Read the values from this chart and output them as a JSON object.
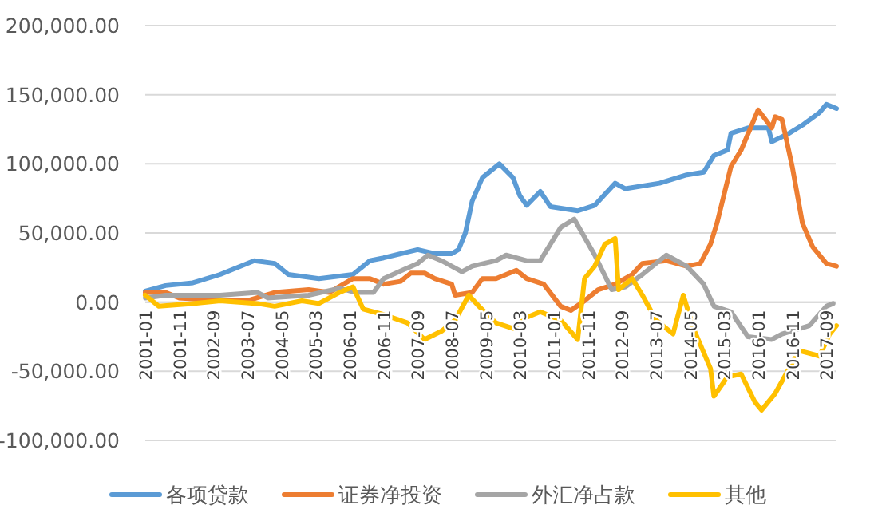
{
  "chart_data": {
    "type": "line",
    "legend": "bottom",
    "grid": "y",
    "line_style": "solid",
    "marker": "none",
    "xlim": [
      "2001-01",
      "2017-12"
    ],
    "xticks": [
      "2001-01",
      "2001-11",
      "2002-09",
      "2003-07",
      "2004-05",
      "2005-03",
      "2006-01",
      "2006-11",
      "2007-09",
      "2008-07",
      "2009-05",
      "2010-03",
      "2011-01",
      "2011-11",
      "2012-09",
      "2013-07",
      "2014-05",
      "2015-03",
      "2016-01",
      "2016-11",
      "2017-09"
    ],
    "ylim": [
      -100000,
      200000
    ],
    "yticks": [
      {
        "value": -100000,
        "label": "-100,000.00"
      },
      {
        "value": -50000,
        "label": "-50,000.00"
      },
      {
        "value": 0,
        "label": "0.00"
      },
      {
        "value": 50000,
        "label": "50,000.00"
      },
      {
        "value": 100000,
        "label": "100,000.00"
      },
      {
        "value": 150000,
        "label": "150,000.00"
      },
      {
        "value": 200000,
        "label": "200,000.00"
      }
    ],
    "series": [
      {
        "name": "各项贷款",
        "color": "#5b9bd5",
        "x": [
          "2001-01",
          "2001-07",
          "2002-03",
          "2002-11",
          "2003-09",
          "2004-03",
          "2004-07",
          "2005-04",
          "2006-02",
          "2006-07",
          "2006-11",
          "2007-04",
          "2007-09",
          "2008-02",
          "2008-07",
          "2008-09",
          "2008-11",
          "2009-01",
          "2009-04",
          "2009-09",
          "2010-01",
          "2010-03",
          "2010-05",
          "2010-09",
          "2010-12",
          "2011-08",
          "2012-01",
          "2012-07",
          "2012-10",
          "2013-08",
          "2014-04",
          "2014-09",
          "2014-12",
          "2015-04",
          "2015-05",
          "2015-10",
          "2016-04",
          "2016-05",
          "2016-10",
          "2017-02",
          "2017-07",
          "2017-09",
          "2017-12"
        ],
        "values": [
          8000,
          12000,
          14000,
          20000,
          30000,
          28000,
          20000,
          17000,
          20000,
          30000,
          32000,
          35000,
          38000,
          35000,
          35000,
          38000,
          50000,
          73000,
          90000,
          100000,
          90000,
          77000,
          70000,
          80000,
          69000,
          66000,
          70000,
          86000,
          82000,
          86000,
          92000,
          94000,
          106000,
          110000,
          122000,
          126000,
          126000,
          116000,
          122000,
          128000,
          137000,
          143000,
          140000
        ]
      },
      {
        "name": "证券净投资",
        "color": "#ed7d31",
        "x": [
          "2001-01",
          "2001-07",
          "2001-11",
          "2002-11",
          "2003-07",
          "2004-03",
          "2005-01",
          "2005-07",
          "2006-02",
          "2006-07",
          "2006-11",
          "2007-04",
          "2007-07",
          "2007-11",
          "2008-02",
          "2008-07",
          "2008-08",
          "2009-01",
          "2009-04",
          "2009-08",
          "2010-02",
          "2010-05",
          "2010-10",
          "2011-03",
          "2011-06",
          "2011-10",
          "2012-02",
          "2012-07",
          "2012-12",
          "2013-03",
          "2013-10",
          "2014-04",
          "2014-08",
          "2014-11",
          "2015-01",
          "2015-05",
          "2015-08",
          "2016-01",
          "2016-05",
          "2016-06",
          "2016-08",
          "2016-11",
          "2017-02",
          "2017-05",
          "2017-09",
          "2017-12"
        ],
        "values": [
          7000,
          7000,
          3000,
          1000,
          1000,
          7000,
          9000,
          7000,
          17000,
          17000,
          13000,
          15000,
          21000,
          21000,
          17000,
          13000,
          5000,
          7000,
          17000,
          17000,
          23000,
          17000,
          13000,
          -3000,
          -6000,
          1000,
          9000,
          13000,
          20000,
          28000,
          30000,
          26000,
          28000,
          42000,
          58000,
          98000,
          110000,
          139000,
          126000,
          134000,
          132000,
          98000,
          57000,
          40000,
          28000,
          26000
        ]
      },
      {
        "name": "外汇净占款",
        "color": "#a5a5a5",
        "x": [
          "2001-01",
          "2001-07",
          "2002-11",
          "2003-10",
          "2004-01",
          "2005-01",
          "2005-10",
          "2006-03",
          "2006-08",
          "2006-11",
          "2007-09",
          "2007-12",
          "2008-04",
          "2008-10",
          "2009-01",
          "2009-08",
          "2009-11",
          "2010-05",
          "2010-09",
          "2010-12",
          "2011-03",
          "2011-07",
          "2012-01",
          "2012-06",
          "2012-10",
          "2013-03",
          "2013-10",
          "2014-04",
          "2014-09",
          "2014-12",
          "2015-05",
          "2015-10",
          "2016-05",
          "2016-08",
          "2017-04",
          "2017-09",
          "2017-11"
        ],
        "values": [
          3000,
          5000,
          5000,
          7000,
          3000,
          5000,
          10000,
          7000,
          7000,
          17000,
          28000,
          34000,
          30000,
          22000,
          26000,
          30000,
          34000,
          30000,
          30000,
          42000,
          54000,
          60000,
          34000,
          9000,
          11000,
          20000,
          34000,
          26000,
          13000,
          -3000,
          -7000,
          -25000,
          -27000,
          -23000,
          -17000,
          -3000,
          -1000
        ]
      },
      {
        "name": "其他",
        "color": "#ffc000",
        "x": [
          "2001-01",
          "2001-05",
          "2002-03",
          "2002-11",
          "2003-10",
          "2004-03",
          "2004-11",
          "2005-04",
          "2005-10",
          "2006-02",
          "2006-05",
          "2006-11",
          "2007-06",
          "2007-11",
          "2008-04",
          "2008-08",
          "2008-12",
          "2009-03",
          "2009-08",
          "2010-01",
          "2010-05",
          "2010-09",
          "2011-03",
          "2011-08",
          "2011-10",
          "2012-01",
          "2012-04",
          "2012-07",
          "2012-08",
          "2012-12",
          "2013-03",
          "2013-07",
          "2013-12",
          "2014-03",
          "2014-06",
          "2014-11",
          "2014-12",
          "2015-04",
          "2015-08",
          "2015-12",
          "2016-02",
          "2016-06",
          "2017-01",
          "2017-07",
          "2017-10",
          "2017-12"
        ],
        "values": [
          5000,
          -3000,
          -1000,
          1000,
          -1000,
          -3000,
          1000,
          -1000,
          7000,
          11000,
          -5000,
          -9000,
          -15000,
          -27000,
          -21000,
          -13000,
          5000,
          -3000,
          -15000,
          -19000,
          -11000,
          -7000,
          -13000,
          -27000,
          17000,
          26000,
          42000,
          46000,
          9000,
          17000,
          5000,
          -13000,
          -23000,
          5000,
          -19000,
          -48000,
          -68000,
          -54000,
          -52000,
          -72000,
          -78000,
          -66000,
          -35000,
          -39000,
          -23000,
          -17000
        ]
      }
    ]
  }
}
